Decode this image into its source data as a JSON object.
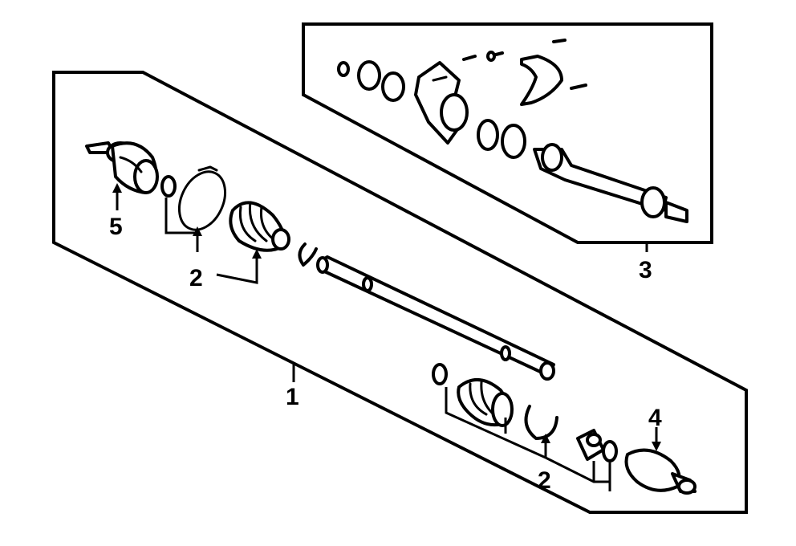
{
  "callouts": {
    "c1": "1",
    "c2_upper": "2",
    "c2_lower": "2",
    "c3": "3",
    "c4": "4",
    "c5": "5"
  },
  "colors": {
    "line": "#000000",
    "background": "#ffffff"
  }
}
